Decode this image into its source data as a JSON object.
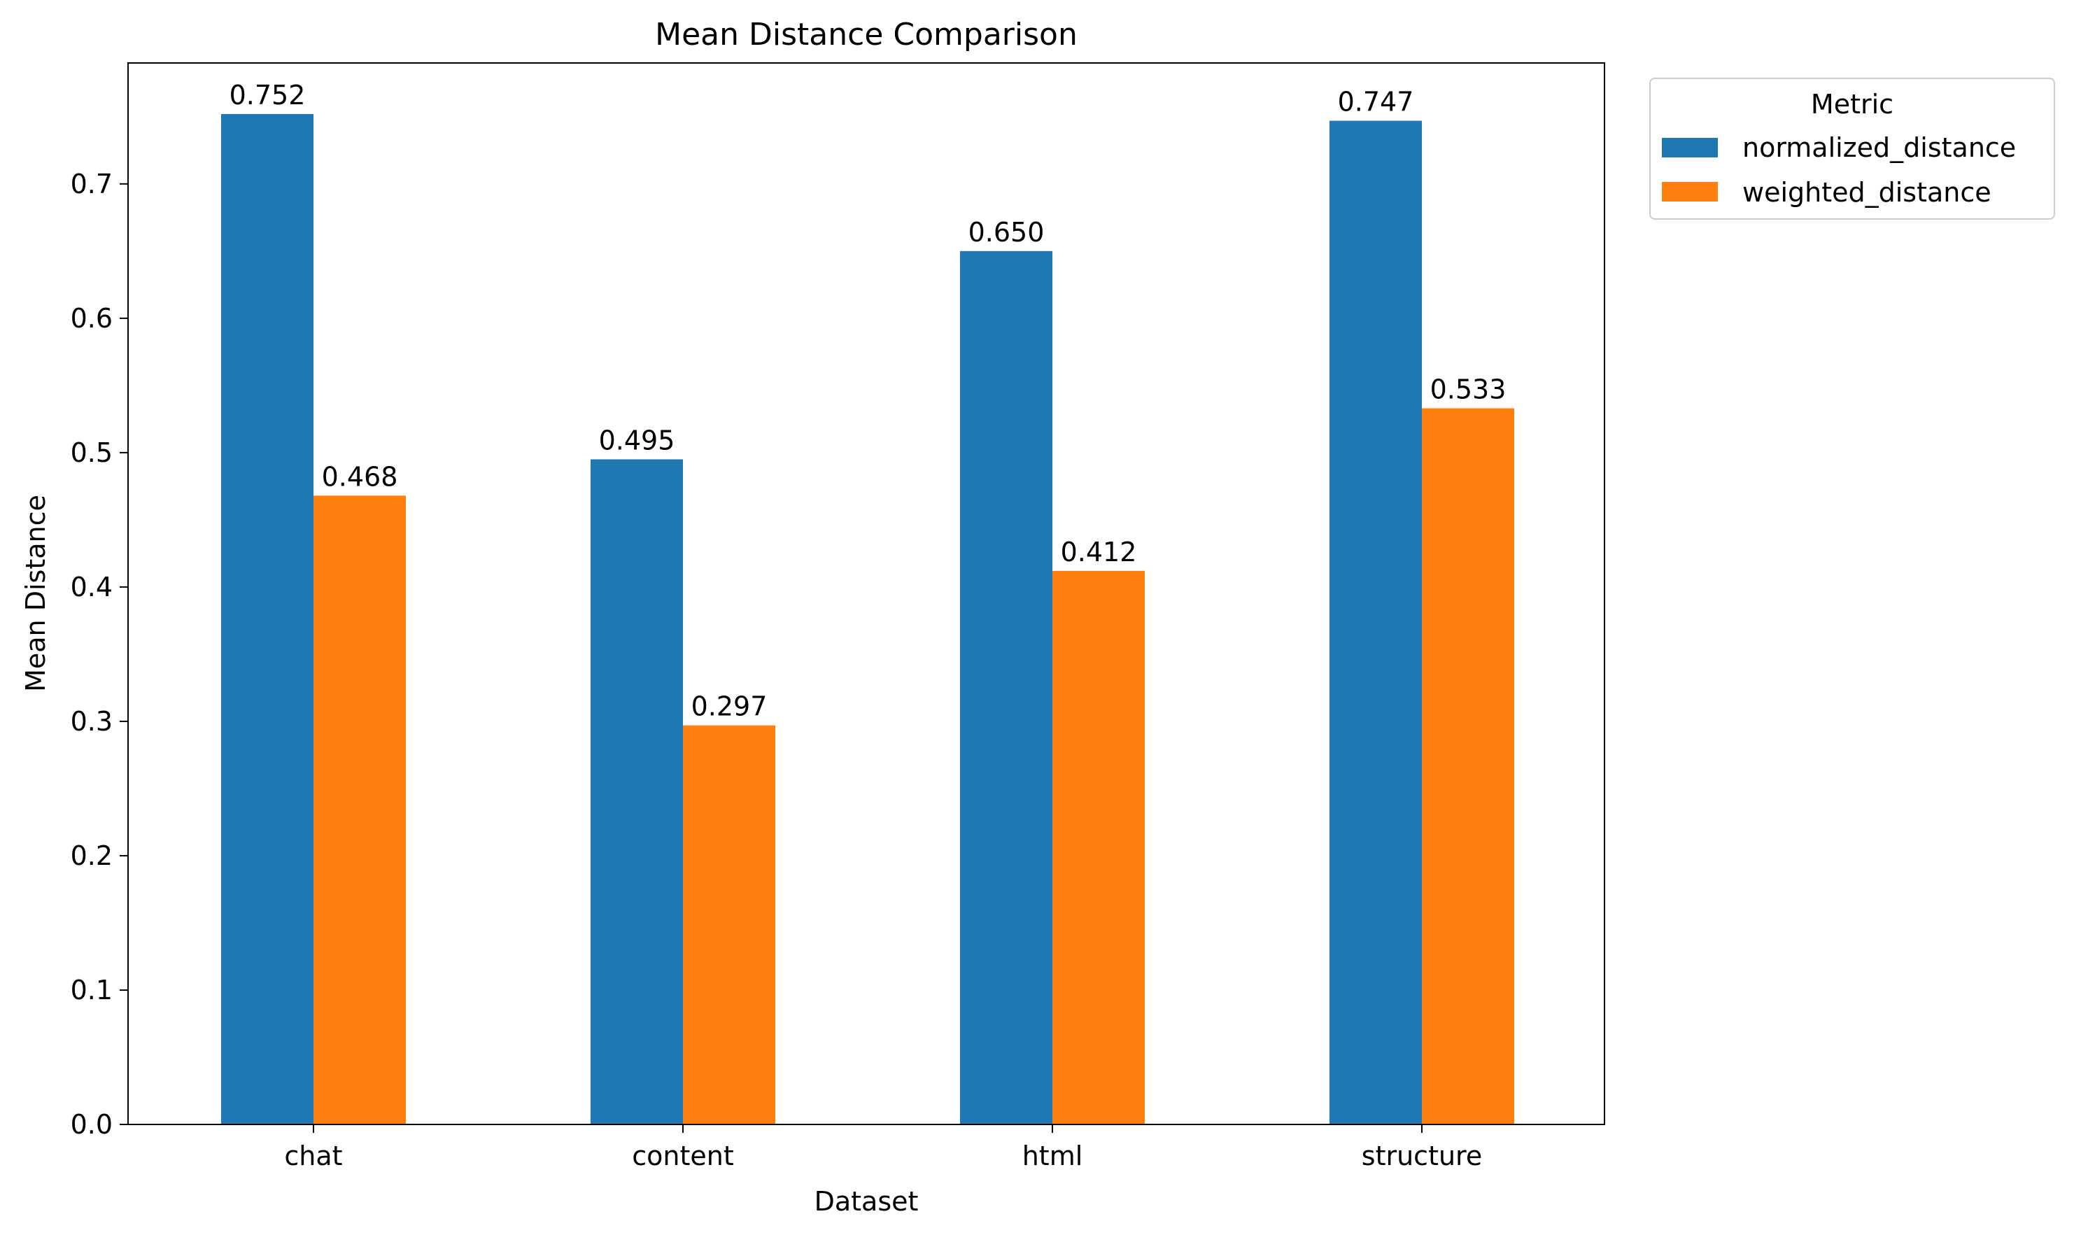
{
  "chart_data": {
    "type": "bar",
    "title": "Mean Distance Comparison",
    "xlabel": "Dataset",
    "ylabel": "Mean Distance",
    "categories": [
      "chat",
      "content",
      "html",
      "structure"
    ],
    "series": [
      {
        "name": "normalized_distance",
        "color": "#1f77b4",
        "values": [
          0.752,
          0.495,
          0.65,
          0.747
        ],
        "labels": [
          "0.752",
          "0.495",
          "0.650",
          "0.747"
        ]
      },
      {
        "name": "weighted_distance",
        "color": "#ff7f0e",
        "values": [
          0.468,
          0.297,
          0.412,
          0.533
        ],
        "labels": [
          "0.468",
          "0.297",
          "0.412",
          "0.533"
        ]
      }
    ],
    "ylim": [
      0,
      0.79
    ],
    "yticks": [
      0.0,
      0.1,
      0.2,
      0.3,
      0.4,
      0.5,
      0.6,
      0.7
    ],
    "ytick_labels": [
      "0.0",
      "0.1",
      "0.2",
      "0.3",
      "0.4",
      "0.5",
      "0.6",
      "0.7"
    ],
    "grid": false,
    "legend": {
      "title": "Metric",
      "placement": "outside-top-right"
    }
  }
}
